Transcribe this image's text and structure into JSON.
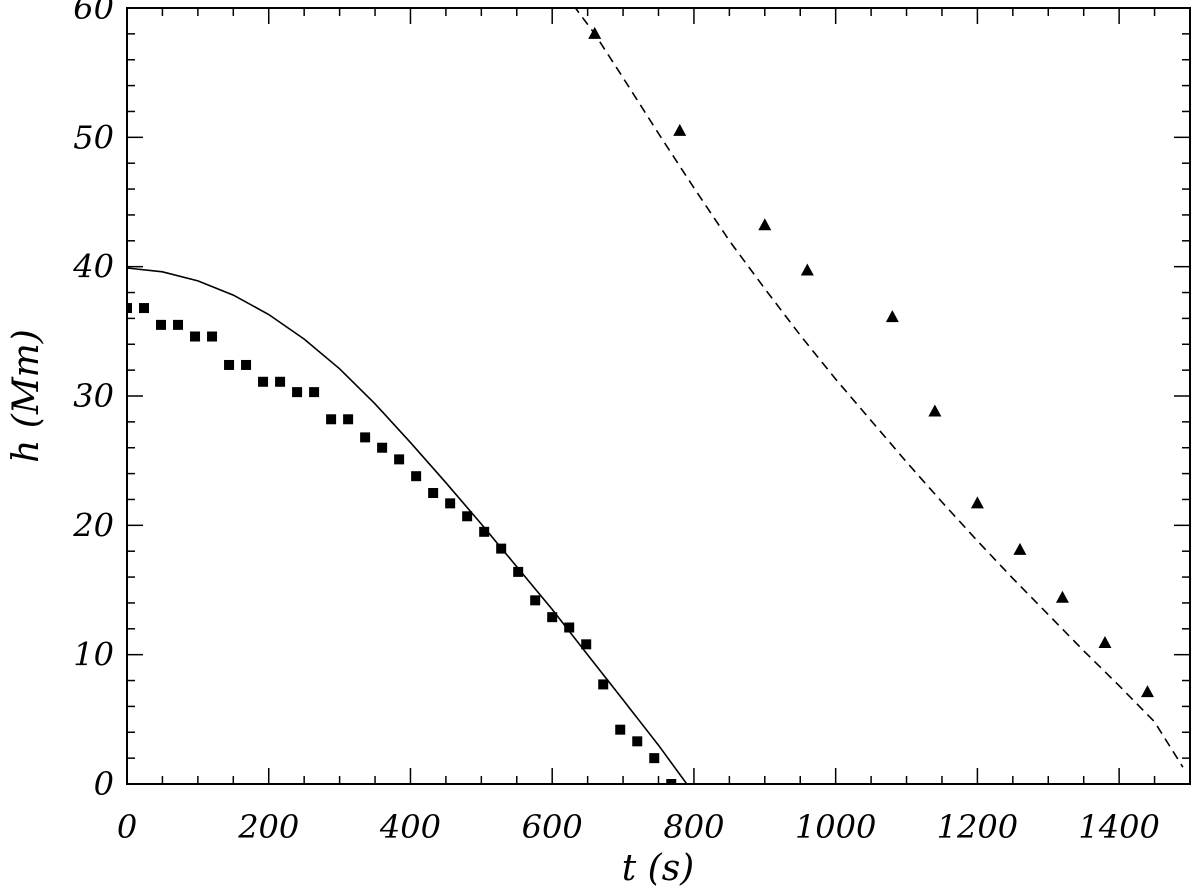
{
  "chart_data": {
    "type": "scatter",
    "xlabel": "t (s)",
    "ylabel": "h (Mm)",
    "xlim": [
      0,
      1500
    ],
    "ylim": [
      0,
      60
    ],
    "x_ticks": [
      0,
      200,
      400,
      600,
      800,
      1000,
      1200,
      1400
    ],
    "y_ticks": [
      0,
      10,
      20,
      30,
      40,
      50,
      60
    ],
    "grid": false,
    "legend": "none",
    "series": [
      {
        "type": "scatter",
        "marker": "square",
        "color": "#000000",
        "x": [
          0,
          24,
          48,
          72,
          96,
          120,
          144,
          168,
          192,
          216,
          240,
          264,
          288,
          312,
          336,
          360,
          384,
          408,
          432,
          456,
          480,
          504,
          528,
          552,
          576,
          600,
          624,
          648,
          672,
          696,
          720,
          744,
          768
        ],
        "y": [
          36.8,
          36.8,
          35.5,
          35.5,
          34.6,
          34.6,
          32.4,
          32.4,
          31.1,
          31.1,
          30.3,
          30.3,
          28.2,
          28.2,
          26.8,
          26.0,
          25.1,
          23.8,
          22.5,
          21.7,
          20.7,
          19.5,
          18.2,
          16.4,
          14.2,
          12.9,
          12.1,
          10.8,
          7.7,
          4.2,
          3.3,
          2.0,
          0
        ]
      },
      {
        "type": "line",
        "style": "solid",
        "color": "#000000",
        "x": [
          0,
          50,
          100,
          150,
          200,
          250,
          300,
          350,
          400,
          450,
          500,
          550,
          600,
          650,
          700,
          750,
          790
        ],
        "y": [
          39.9,
          39.6,
          38.9,
          37.8,
          36.3,
          34.4,
          32.1,
          29.4,
          26.4,
          23.3,
          20.1,
          16.8,
          13.5,
          10.0,
          6.5,
          3.0,
          0
        ]
      },
      {
        "type": "scatter",
        "marker": "triangle",
        "color": "#000000",
        "x": [
          660,
          780,
          900,
          960,
          1080,
          1140,
          1200,
          1260,
          1320,
          1380,
          1440
        ],
        "y": [
          58.0,
          50.5,
          43.2,
          39.7,
          36.1,
          28.8,
          21.7,
          18.1,
          14.4,
          10.9,
          7.1
        ]
      },
      {
        "type": "line",
        "style": "dashed",
        "color": "#000000",
        "x": [
          630,
          660,
          700,
          750,
          800,
          850,
          900,
          950,
          1000,
          1050,
          1100,
          1150,
          1200,
          1250,
          1300,
          1350,
          1400,
          1450,
          1490
        ],
        "y": [
          60.2,
          58.0,
          54.6,
          50.3,
          46.1,
          42.0,
          38.3,
          34.7,
          31.3,
          28.1,
          24.9,
          21.8,
          18.8,
          15.9,
          13.1,
          10.3,
          7.6,
          4.8,
          1.3
        ]
      }
    ]
  }
}
